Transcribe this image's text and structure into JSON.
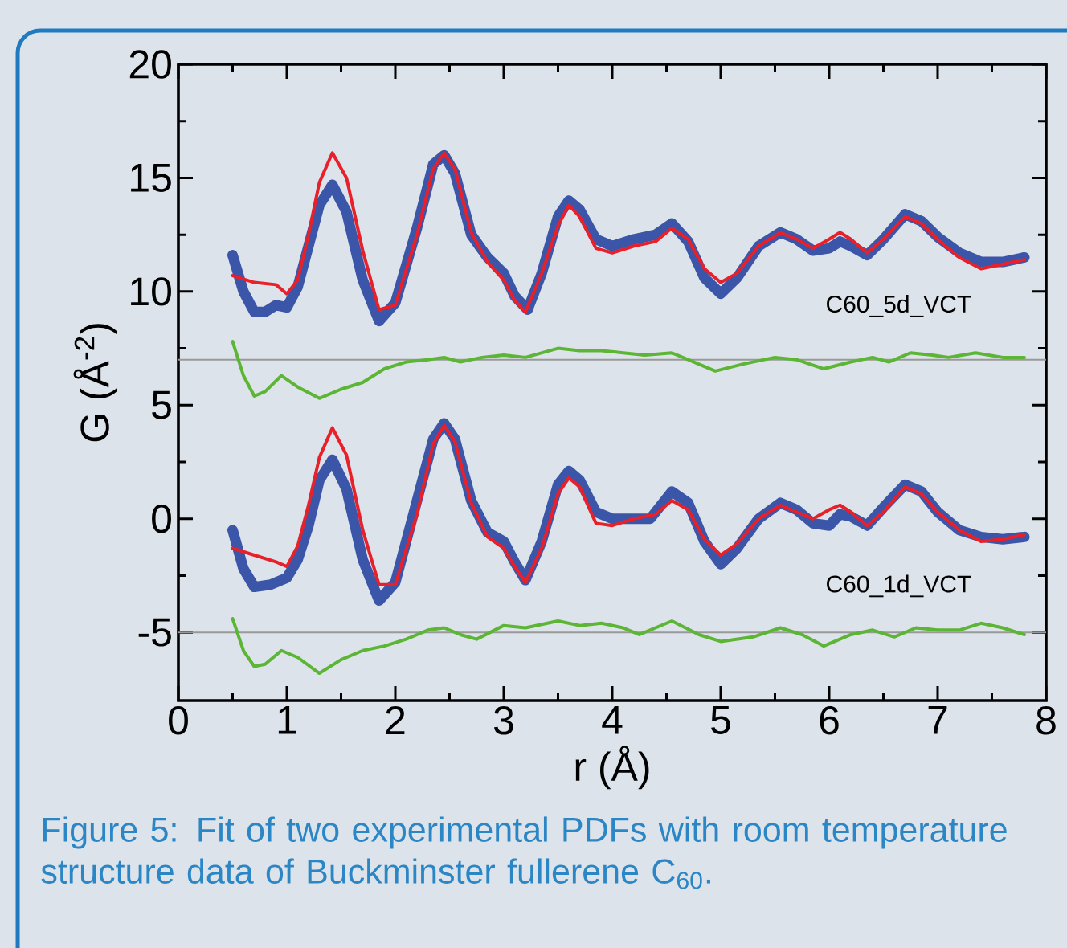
{
  "chart_data": {
    "type": "line",
    "xlabel": "r (Å)",
    "ylabel": "G (Å$^{-2}$)",
    "xlim": [
      0,
      8
    ],
    "ylim": [
      -8,
      20
    ],
    "xticks": [
      0,
      1,
      2,
      3,
      4,
      5,
      6,
      7,
      8
    ],
    "yticks": [
      -5,
      0,
      5,
      10,
      15,
      20
    ],
    "marker": "none",
    "line_style": "solid",
    "series": [
      {
        "color": "#3b55a8",
        "x": [
          0.5,
          0.6,
          0.7,
          0.8,
          0.9,
          1.0,
          1.1,
          1.2,
          1.3,
          1.42,
          1.55,
          1.7,
          1.85,
          2.0,
          2.2,
          2.35,
          2.45,
          2.55,
          2.7,
          2.85,
          3.0,
          3.1,
          3.22,
          3.35,
          3.5,
          3.6,
          3.7,
          3.85,
          4.0,
          4.2,
          4.4,
          4.55,
          4.7,
          4.85,
          5.0,
          5.15,
          5.35,
          5.55,
          5.7,
          5.85,
          6.0,
          6.1,
          6.2,
          6.35,
          6.5,
          6.7,
          6.85,
          7.0,
          7.2,
          7.4,
          7.6,
          7.8
        ],
        "values": [
          11.6,
          10.0,
          9.1,
          9.1,
          9.4,
          9.3,
          10.2,
          12.0,
          13.8,
          14.7,
          13.5,
          10.5,
          8.7,
          9.5,
          12.8,
          15.6,
          16.0,
          15.2,
          12.5,
          11.5,
          10.8,
          9.8,
          9.2,
          10.8,
          13.3,
          14.0,
          13.6,
          12.3,
          12.0,
          12.3,
          12.5,
          13.0,
          12.2,
          10.6,
          9.9,
          10.6,
          12.0,
          12.6,
          12.3,
          11.8,
          11.9,
          12.2,
          12.0,
          11.6,
          12.3,
          13.4,
          13.1,
          12.4,
          11.7,
          11.3,
          11.3,
          11.5
        ]
      },
      {
        "color": "#e8202a",
        "x": [
          0.5,
          0.7,
          0.9,
          1.0,
          1.1,
          1.2,
          1.3,
          1.42,
          1.55,
          1.7,
          1.85,
          2.0,
          2.2,
          2.35,
          2.45,
          2.55,
          2.7,
          2.85,
          3.0,
          3.1,
          3.2,
          3.35,
          3.5,
          3.6,
          3.7,
          3.85,
          4.0,
          4.2,
          4.4,
          4.55,
          4.7,
          4.85,
          5.0,
          5.15,
          5.35,
          5.55,
          5.7,
          5.85,
          6.0,
          6.1,
          6.2,
          6.35,
          6.5,
          6.7,
          6.85,
          7.0,
          7.2,
          7.4,
          7.6,
          7.8
        ],
        "values": [
          10.7,
          10.4,
          10.3,
          9.9,
          10.5,
          12.5,
          14.8,
          16.1,
          15.0,
          11.8,
          9.2,
          9.4,
          12.5,
          15.4,
          16.1,
          15.4,
          12.6,
          11.3,
          10.5,
          9.6,
          9.1,
          10.8,
          12.9,
          13.8,
          13.3,
          11.9,
          11.7,
          12.0,
          12.2,
          12.8,
          12.3,
          11.0,
          10.4,
          10.8,
          12.0,
          12.6,
          12.3,
          11.9,
          12.3,
          12.6,
          12.3,
          11.7,
          12.3,
          13.3,
          13.0,
          12.3,
          11.5,
          11.0,
          11.2,
          11.4
        ]
      },
      {
        "color": "#5cb535",
        "x": [
          0.5,
          0.6,
          0.7,
          0.8,
          0.95,
          1.1,
          1.3,
          1.5,
          1.7,
          1.9,
          2.1,
          2.3,
          2.45,
          2.6,
          2.8,
          3.0,
          3.2,
          3.5,
          3.7,
          3.9,
          4.1,
          4.3,
          4.55,
          4.7,
          4.95,
          5.2,
          5.5,
          5.7,
          5.95,
          6.2,
          6.4,
          6.55,
          6.75,
          6.95,
          7.1,
          7.35,
          7.6,
          7.8
        ],
        "values": [
          7.8,
          6.3,
          5.4,
          5.6,
          6.3,
          5.8,
          5.3,
          5.7,
          6.0,
          6.6,
          6.9,
          7.0,
          7.1,
          6.9,
          7.1,
          7.2,
          7.1,
          7.5,
          7.4,
          7.4,
          7.3,
          7.2,
          7.3,
          7.0,
          6.5,
          6.8,
          7.1,
          7.0,
          6.6,
          6.9,
          7.1,
          6.9,
          7.3,
          7.2,
          7.1,
          7.3,
          7.1,
          7.1
        ]
      },
      {
        "color": "#3b55a8",
        "x": [
          0.5,
          0.6,
          0.7,
          0.85,
          1.0,
          1.1,
          1.2,
          1.3,
          1.42,
          1.55,
          1.7,
          1.85,
          2.0,
          2.2,
          2.35,
          2.45,
          2.55,
          2.7,
          2.85,
          3.0,
          3.1,
          3.2,
          3.35,
          3.5,
          3.6,
          3.7,
          3.85,
          4.0,
          4.2,
          4.35,
          4.55,
          4.7,
          4.85,
          5.0,
          5.15,
          5.35,
          5.55,
          5.7,
          5.85,
          6.0,
          6.1,
          6.2,
          6.35,
          6.5,
          6.7,
          6.85,
          7.0,
          7.2,
          7.4,
          7.6,
          7.8
        ],
        "values": [
          -0.5,
          -2.2,
          -3.0,
          -2.9,
          -2.6,
          -1.8,
          -0.3,
          1.7,
          2.6,
          1.3,
          -1.8,
          -3.6,
          -2.8,
          0.8,
          3.5,
          4.2,
          3.5,
          0.8,
          -0.6,
          -1.0,
          -1.9,
          -2.7,
          -1.0,
          1.5,
          2.1,
          1.7,
          0.3,
          0.0,
          0.0,
          0.0,
          1.2,
          0.7,
          -1.0,
          -2.0,
          -1.3,
          0.0,
          0.7,
          0.4,
          -0.2,
          -0.3,
          0.2,
          0.1,
          -0.3,
          0.5,
          1.5,
          1.2,
          0.3,
          -0.5,
          -0.8,
          -0.9,
          -0.8
        ]
      },
      {
        "color": "#e8202a",
        "x": [
          0.5,
          0.7,
          0.9,
          1.0,
          1.1,
          1.2,
          1.3,
          1.42,
          1.55,
          1.7,
          1.85,
          2.0,
          2.2,
          2.35,
          2.45,
          2.55,
          2.7,
          2.85,
          3.0,
          3.1,
          3.2,
          3.35,
          3.5,
          3.6,
          3.7,
          3.85,
          4.0,
          4.2,
          4.4,
          4.55,
          4.7,
          4.85,
          5.0,
          5.15,
          5.35,
          5.55,
          5.7,
          5.85,
          6.0,
          6.1,
          6.2,
          6.35,
          6.5,
          6.7,
          6.85,
          7.0,
          7.2,
          7.4,
          7.6,
          7.8
        ],
        "values": [
          -1.3,
          -1.6,
          -1.9,
          -2.1,
          -1.2,
          0.6,
          2.7,
          4.0,
          2.8,
          -0.5,
          -2.9,
          -2.9,
          0.2,
          3.3,
          4.1,
          3.4,
          0.7,
          -0.8,
          -1.3,
          -2.1,
          -2.8,
          -1.3,
          1.1,
          1.8,
          1.4,
          -0.2,
          -0.3,
          0.0,
          0.2,
          0.8,
          0.4,
          -0.9,
          -1.6,
          -1.1,
          0.0,
          0.6,
          0.3,
          0.0,
          0.4,
          0.6,
          0.3,
          -0.3,
          0.3,
          1.4,
          1.1,
          0.3,
          -0.5,
          -1.0,
          -0.9,
          -0.7
        ]
      },
      {
        "color": "#5cb535",
        "x": [
          0.5,
          0.6,
          0.7,
          0.8,
          0.95,
          1.1,
          1.3,
          1.5,
          1.7,
          1.9,
          2.1,
          2.3,
          2.45,
          2.6,
          2.75,
          3.0,
          3.2,
          3.5,
          3.7,
          3.9,
          4.1,
          4.25,
          4.55,
          4.8,
          5.0,
          5.3,
          5.55,
          5.75,
          5.95,
          6.2,
          6.4,
          6.6,
          6.8,
          7.0,
          7.2,
          7.4,
          7.6,
          7.8
        ],
        "values": [
          -4.4,
          -5.8,
          -6.5,
          -6.4,
          -5.8,
          -6.1,
          -6.8,
          -6.2,
          -5.8,
          -5.6,
          -5.3,
          -4.9,
          -4.8,
          -5.1,
          -5.3,
          -4.7,
          -4.8,
          -4.5,
          -4.7,
          -4.6,
          -4.8,
          -5.1,
          -4.5,
          -5.1,
          -5.4,
          -5.2,
          -4.8,
          -5.1,
          -5.6,
          -5.1,
          -4.9,
          -5.2,
          -4.8,
          -4.9,
          -4.9,
          -4.6,
          -4.8,
          -5.1
        ]
      }
    ],
    "ref_lines": [
      {
        "axis": "y",
        "value": 7,
        "color": "#999999"
      },
      {
        "axis": "y",
        "value": -5,
        "color": "#999999"
      }
    ],
    "annotations": [
      "C60_5d_VCT",
      "C60_1d_VCT",
      "Figure 5: Fit of two experimental PDFs with room temperature structure data of Buckminster fullerene C$_{60}$."
    ]
  }
}
